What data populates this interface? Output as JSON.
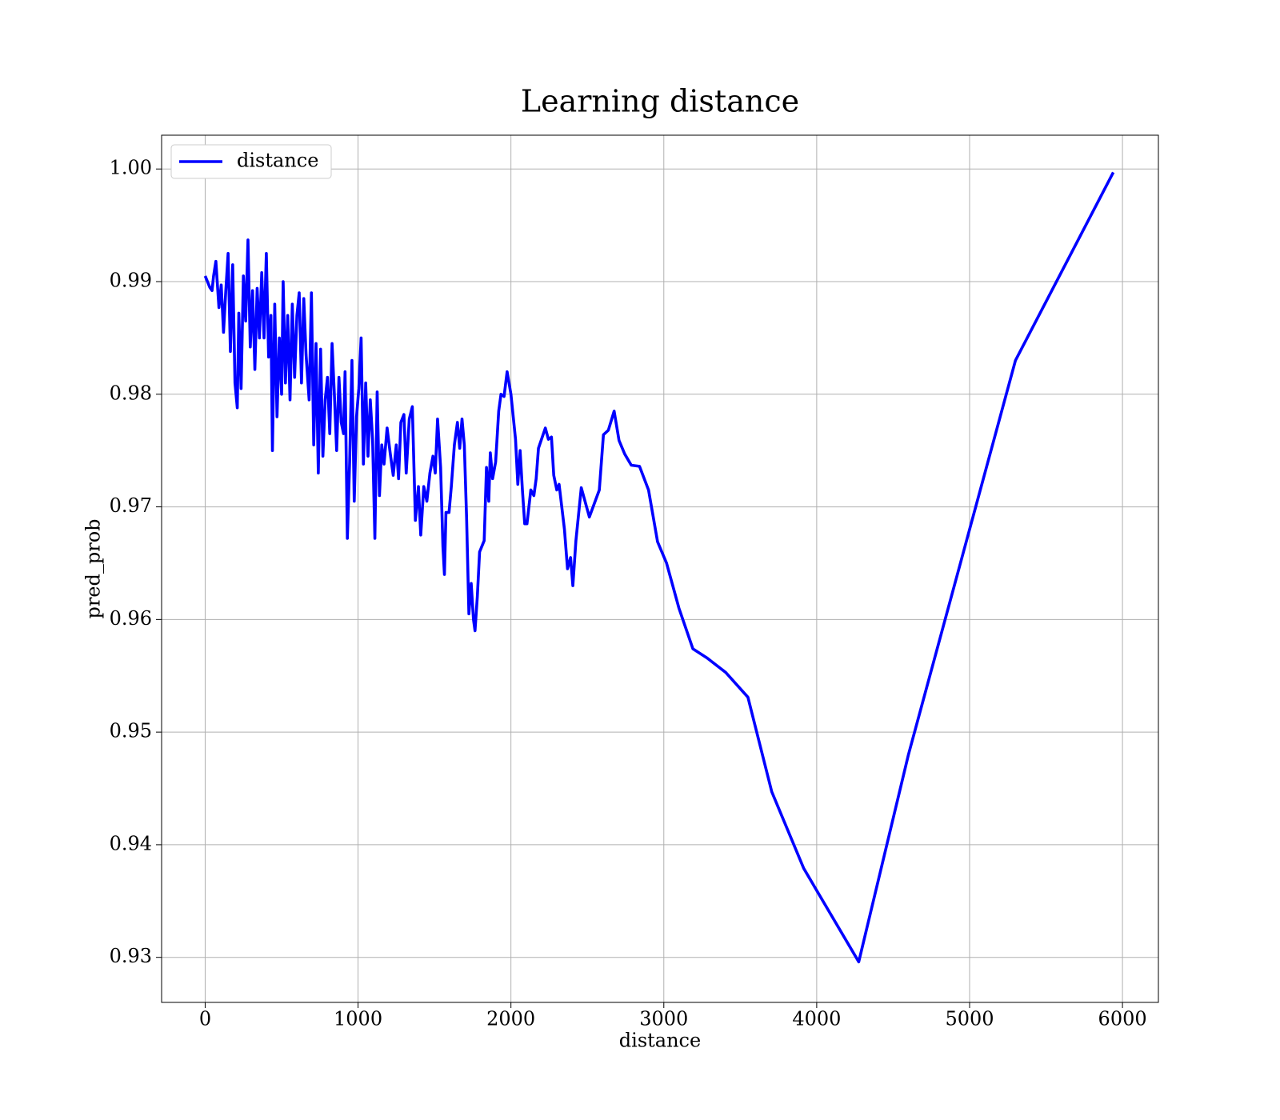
{
  "chart_data": {
    "type": "line",
    "title": "Learning distance",
    "x_label": "distance",
    "y_label": "pred_prob",
    "x": [
      0,
      30,
      45,
      55,
      70,
      90,
      105,
      120,
      135,
      150,
      165,
      180,
      195,
      210,
      220,
      235,
      250,
      265,
      280,
      295,
      310,
      325,
      340,
      355,
      370,
      385,
      400,
      415,
      430,
      440,
      455,
      470,
      485,
      500,
      510,
      525,
      540,
      555,
      570,
      585,
      600,
      615,
      630,
      645,
      660,
      680,
      695,
      710,
      725,
      740,
      755,
      770,
      785,
      800,
      815,
      830,
      845,
      860,
      875,
      890,
      905,
      915,
      930,
      945,
      960,
      975,
      990,
      1005,
      1020,
      1035,
      1050,
      1065,
      1080,
      1095,
      1110,
      1125,
      1140,
      1155,
      1170,
      1190,
      1210,
      1230,
      1250,
      1265,
      1280,
      1300,
      1315,
      1335,
      1355,
      1375,
      1395,
      1410,
      1430,
      1450,
      1470,
      1490,
      1505,
      1520,
      1540,
      1555,
      1565,
      1575,
      1595,
      1610,
      1630,
      1650,
      1665,
      1680,
      1695,
      1710,
      1725,
      1740,
      1755,
      1765,
      1780,
      1795,
      1810,
      1825,
      1840,
      1855,
      1865,
      1880,
      1900,
      1920,
      1935,
      1955,
      1975,
      2000,
      2030,
      2045,
      2060,
      2075,
      2090,
      2105,
      2130,
      2150,
      2165,
      2180,
      2200,
      2225,
      2245,
      2265,
      2280,
      2300,
      2315,
      2350,
      2370,
      2390,
      2405,
      2425,
      2460,
      2513,
      2578,
      2605,
      2637,
      2675,
      2707,
      2744,
      2787,
      2841,
      2900,
      2959,
      3018,
      3099,
      3190,
      3281,
      3405,
      3550,
      3706,
      3915,
      4275,
      4600,
      4950,
      5300,
      5940
    ],
    "series": [
      {
        "name": "distance",
        "color": "#0000ff",
        "values": [
          0.9905,
          0.9895,
          0.9892,
          0.9905,
          0.9918,
          0.9877,
          0.9897,
          0.9855,
          0.9892,
          0.9925,
          0.9838,
          0.9915,
          0.981,
          0.9788,
          0.9872,
          0.9805,
          0.9905,
          0.9865,
          0.9937,
          0.9842,
          0.9892,
          0.9822,
          0.9894,
          0.985,
          0.9908,
          0.985,
          0.9925,
          0.9833,
          0.987,
          0.975,
          0.988,
          0.978,
          0.985,
          0.98,
          0.99,
          0.981,
          0.987,
          0.9795,
          0.988,
          0.9815,
          0.987,
          0.989,
          0.981,
          0.9885,
          0.9835,
          0.9795,
          0.989,
          0.9755,
          0.9845,
          0.973,
          0.984,
          0.9745,
          0.9795,
          0.9815,
          0.9765,
          0.9845,
          0.98,
          0.975,
          0.9815,
          0.9775,
          0.9765,
          0.982,
          0.9672,
          0.974,
          0.983,
          0.9705,
          0.978,
          0.9805,
          0.985,
          0.9738,
          0.981,
          0.9745,
          0.9795,
          0.976,
          0.9672,
          0.9802,
          0.971,
          0.9755,
          0.9738,
          0.977,
          0.9748,
          0.9728,
          0.9755,
          0.9725,
          0.9775,
          0.9782,
          0.973,
          0.9778,
          0.9789,
          0.9688,
          0.9718,
          0.9675,
          0.9718,
          0.9705,
          0.973,
          0.9745,
          0.973,
          0.9778,
          0.9735,
          0.9665,
          0.964,
          0.9695,
          0.9695,
          0.9718,
          0.9755,
          0.9775,
          0.9752,
          0.9778,
          0.9755,
          0.969,
          0.9605,
          0.9632,
          0.96,
          0.959,
          0.962,
          0.966,
          0.9665,
          0.967,
          0.9735,
          0.9705,
          0.9748,
          0.9725,
          0.974,
          0.9785,
          0.98,
          0.9798,
          0.982,
          0.98,
          0.976,
          0.972,
          0.975,
          0.9715,
          0.9685,
          0.9685,
          0.9715,
          0.971,
          0.9725,
          0.9752,
          0.976,
          0.977,
          0.976,
          0.9762,
          0.9728,
          0.9715,
          0.972,
          0.968,
          0.9645,
          0.9655,
          0.963,
          0.967,
          0.9717,
          0.9691,
          0.9715,
          0.9764,
          0.9768,
          0.9785,
          0.9759,
          0.9747,
          0.9737,
          0.9736,
          0.9715,
          0.9669,
          0.965,
          0.961,
          0.9574,
          0.9566,
          0.9553,
          0.9531,
          0.9447,
          0.9379,
          0.9296,
          0.948,
          0.9655,
          0.983,
          0.9997
        ]
      }
    ],
    "xlim": [
      -285,
      6235
    ],
    "ylim": [
      0.926,
      1.003
    ],
    "xticks": [
      0,
      1000,
      2000,
      3000,
      4000,
      5000,
      6000
    ],
    "yticks": [
      0.93,
      0.94,
      0.95,
      0.96,
      0.97,
      0.98,
      0.99,
      {
        "value": 1,
        "label": "1.00"
      }
    ],
    "grid": true,
    "legend": "upper left"
  }
}
